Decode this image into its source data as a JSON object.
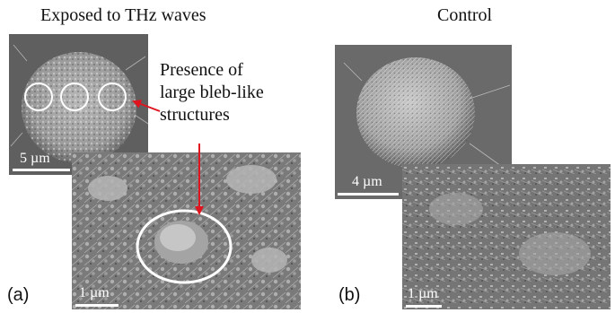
{
  "panel_a": {
    "title": "Exposed to THz waves",
    "label": "(a)",
    "annotation": "Presence of\nlarge bleb-like\nstructures",
    "scalebar_top": "5 µm",
    "scalebar_bottom": "1 µm"
  },
  "panel_b": {
    "title": "Control",
    "label": "(b)",
    "scalebar_top": "4 µm",
    "scalebar_bottom": "1 µm"
  },
  "colors": {
    "arrow": "#e0141e",
    "circle": "#ffffff",
    "sem_gray": "#6e6e6e"
  }
}
